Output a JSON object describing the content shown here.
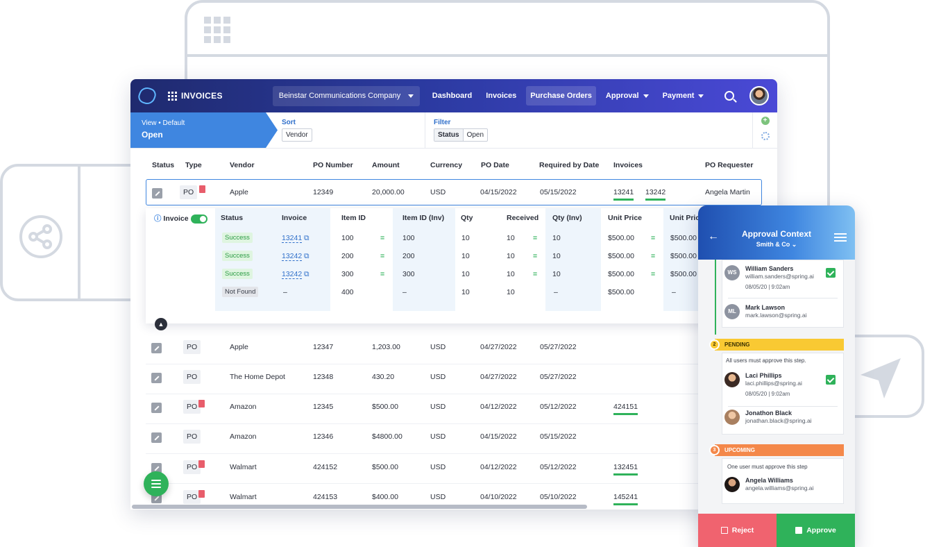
{
  "app": {
    "name": "INVOICES",
    "company": "Beinstar Communications Company"
  },
  "nav": [
    {
      "label": "Dashboard"
    },
    {
      "label": "Invoices"
    },
    {
      "label": "Purchase Orders",
      "active": true
    },
    {
      "label": "Approval",
      "dropdown": true
    },
    {
      "label": "Payment",
      "dropdown": true
    }
  ],
  "view": {
    "line1": "View • Default",
    "line2": "Open"
  },
  "sort": {
    "label": "Sort",
    "value": "Vendor"
  },
  "filter": {
    "label": "Filter",
    "key": "Status",
    "value": "Open"
  },
  "table": {
    "headers": [
      "Status",
      "Type",
      "Vendor",
      "PO Number",
      "Amount",
      "Currency",
      "PO Date",
      "Required by Date",
      "Invoices",
      "PO Requester"
    ],
    "rows": [
      {
        "type": "PO",
        "pdf": true,
        "vendor": "Apple",
        "po": "12349",
        "amount": "20,000.00",
        "currency": "USD",
        "po_date": "04/15/2022",
        "req_date": "05/15/2022",
        "invoices": [
          "13241",
          "13242"
        ],
        "requester": "Angela Martin"
      },
      {
        "type": "PO",
        "pdf": false,
        "vendor": "Apple",
        "po": "12347",
        "amount": "1,203.00",
        "currency": "USD",
        "po_date": "04/27/2022",
        "req_date": "05/27/2022",
        "invoices": [],
        "requester": ""
      },
      {
        "type": "PO",
        "pdf": false,
        "vendor": "The Home Depot",
        "po": "12348",
        "amount": "430.20",
        "currency": "USD",
        "po_date": "04/27/2022",
        "req_date": "05/27/2022",
        "invoices": [],
        "requester": ""
      },
      {
        "type": "PO",
        "pdf": true,
        "vendor": "Amazon",
        "po": "12345",
        "amount": "$500.00",
        "currency": "USD",
        "po_date": "04/12/2022",
        "req_date": "05/12/2022",
        "invoices": [
          "424151"
        ],
        "requester": ""
      },
      {
        "type": "PO",
        "pdf": false,
        "vendor": "Amazon",
        "po": "12346",
        "amount": "$4800.00",
        "currency": "USD",
        "po_date": "04/15/2022",
        "req_date": "05/15/2022",
        "invoices": [],
        "requester": ""
      },
      {
        "type": "PO",
        "pdf": true,
        "vendor": "Walmart",
        "po": "424152",
        "amount": "$500.00",
        "currency": "USD",
        "po_date": "04/12/2022",
        "req_date": "05/12/2022",
        "invoices": [
          "132451"
        ],
        "requester": ""
      },
      {
        "type": "PO",
        "pdf": true,
        "vendor": "Walmart",
        "po": "424153",
        "amount": "$400.00",
        "currency": "USD",
        "po_date": "04/10/2022",
        "req_date": "05/10/2022",
        "invoices": [
          "145241"
        ],
        "requester": ""
      }
    ]
  },
  "expanded": {
    "toggle_label": "Invoice",
    "headers": [
      "Status",
      "Invoice",
      "Item ID",
      "Item ID (Inv)",
      "Qty",
      "Received",
      "Qty (Inv)",
      "Unit Price",
      "Unit Pric"
    ],
    "rows": [
      {
        "status": "Success",
        "invoice": "13241",
        "item": "100",
        "item_inv": "100",
        "qty": "10",
        "received": "10",
        "qty_inv": "10",
        "price": "$500.00",
        "price_inv": "$500.00",
        "match": true
      },
      {
        "status": "Success",
        "invoice": "13242",
        "item": "200",
        "item_inv": "200",
        "qty": "10",
        "received": "10",
        "qty_inv": "10",
        "price": "$500.00",
        "price_inv": "$500.00",
        "match": true
      },
      {
        "status": "Success",
        "invoice": "13242",
        "item": "300",
        "item_inv": "300",
        "qty": "10",
        "received": "10",
        "qty_inv": "10",
        "price": "$500.00",
        "price_inv": "$500.00",
        "match": true
      },
      {
        "status": "Not Found",
        "invoice": "–",
        "item": "400",
        "item_inv": "–",
        "qty": "10",
        "received": "10",
        "qty_inv": "–",
        "price": "$500.00",
        "price_inv": "–",
        "match": false
      }
    ]
  },
  "approval": {
    "title": "Approval Context",
    "subtitle": "Smith & Co",
    "approved": [
      {
        "initials": "WS",
        "name": "William Sanders",
        "email": "william.sanders@spring.ai",
        "date": "08/05/20  |  9:02am",
        "checked": true
      },
      {
        "initials": "ML",
        "name": "Mark Lawson",
        "email": "mark.lawson@spring.ai",
        "date": "",
        "checked": false
      }
    ],
    "pending": {
      "num": "2",
      "label": "PENDING",
      "note": "All users must approve this step.",
      "people": [
        {
          "name": "Laci Phillips",
          "email": "laci.phillips@spring.ai",
          "date": "08/05/20  |  9:02am",
          "checked": true
        },
        {
          "name": "Jonathon Black",
          "email": "jonathan.black@spring.ai",
          "date": "",
          "checked": false
        }
      ]
    },
    "upcoming": {
      "num": "3",
      "label": "UPCOMING",
      "note": "One user must approve this step",
      "people": [
        {
          "name": "Angela Williams",
          "email": "angela.williams@spring.ai"
        }
      ]
    },
    "reject": "Reject",
    "approve": "Approve"
  },
  "colors": {
    "brand": "#2b3aa0",
    "accent": "#3f86e0",
    "success": "#2fb25a",
    "pending": "#f9c933",
    "upcoming": "#f4884a",
    "reject": "#f0636f"
  }
}
